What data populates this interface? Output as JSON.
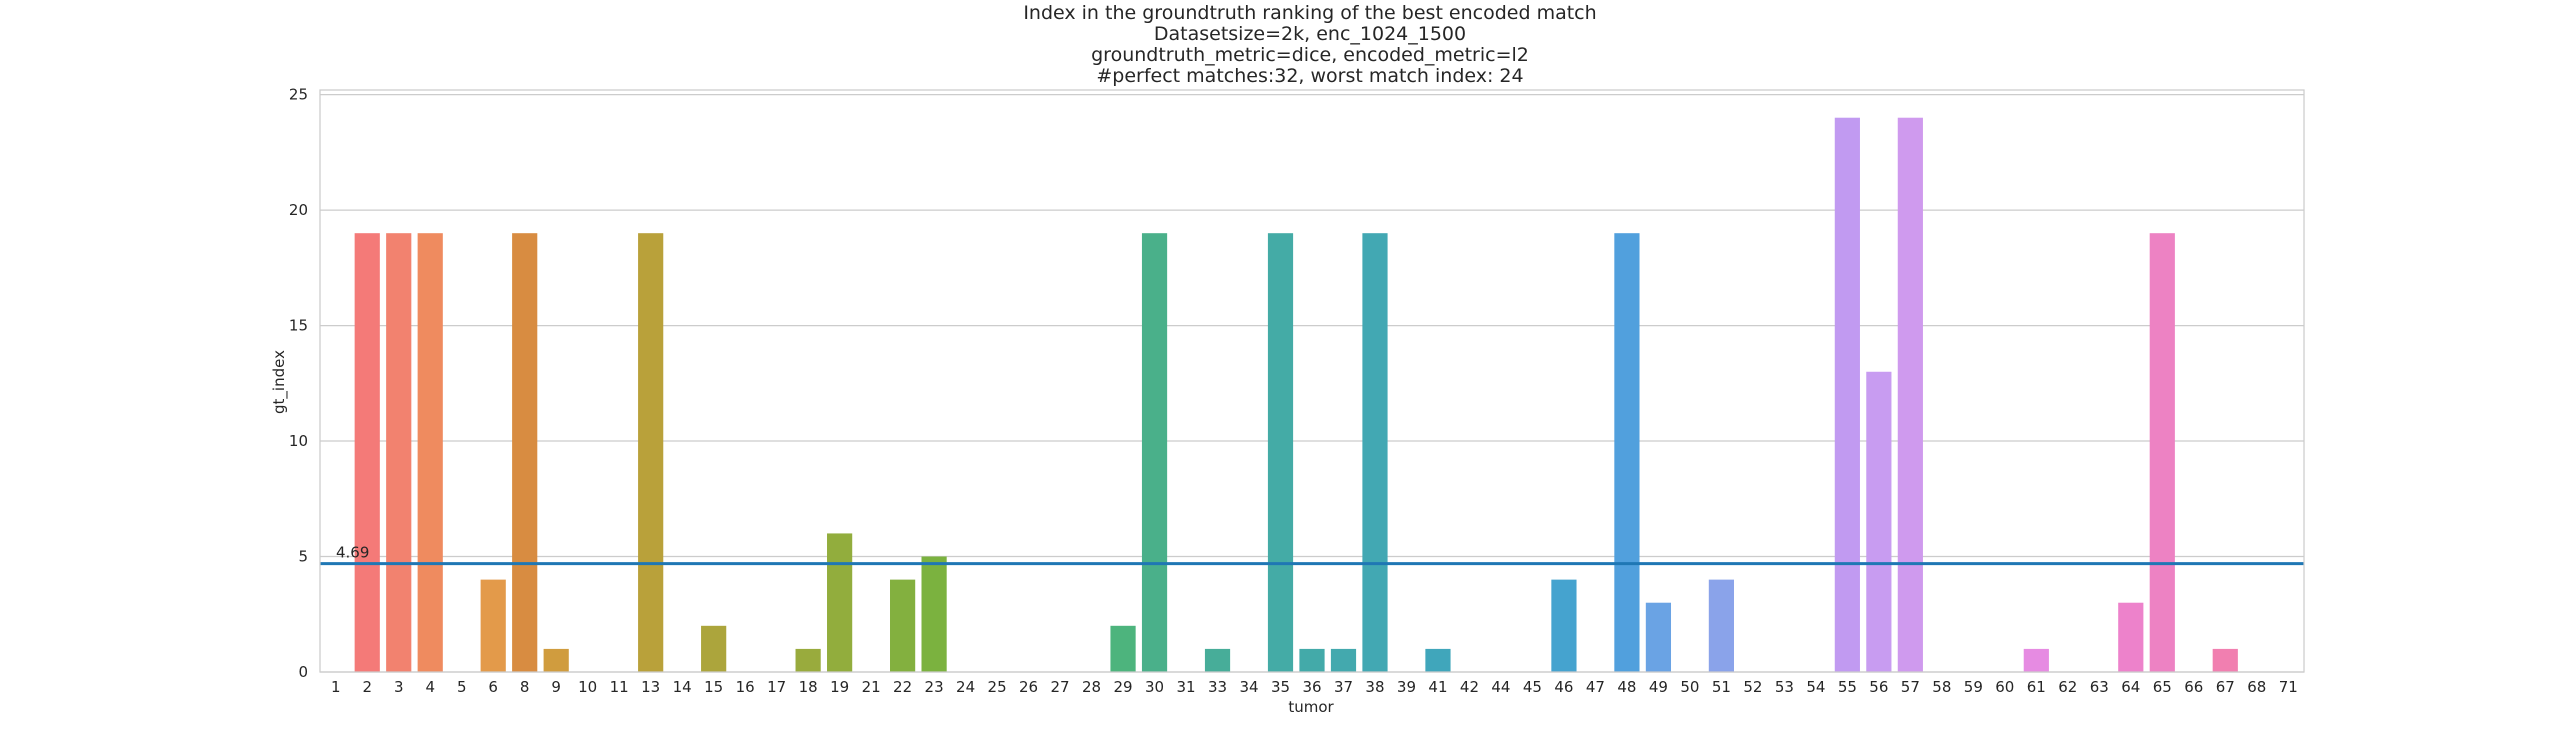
{
  "chart_data": {
    "type": "bar",
    "title_lines": [
      "Index in the groundtruth ranking of the best encoded match",
      "Datasetsize=2k, enc_1024_1500",
      "groundtruth_metric=dice, encoded_metric=l2",
      "#perfect matches:32, worst match index: 24"
    ],
    "xlabel": "tumor",
    "ylabel": "gt_index",
    "ylim": [
      0,
      25.2
    ],
    "yticks": [
      0,
      5,
      10,
      15,
      20,
      25
    ],
    "grid": "y",
    "categories": [
      "1",
      "2",
      "3",
      "4",
      "5",
      "6",
      "8",
      "9",
      "10",
      "11",
      "13",
      "14",
      "15",
      "16",
      "17",
      "18",
      "19",
      "21",
      "22",
      "23",
      "24",
      "25",
      "26",
      "27",
      "28",
      "29",
      "30",
      "31",
      "33",
      "34",
      "35",
      "36",
      "37",
      "38",
      "39",
      "41",
      "42",
      "44",
      "45",
      "46",
      "47",
      "48",
      "49",
      "50",
      "51",
      "52",
      "53",
      "54",
      "55",
      "56",
      "57",
      "58",
      "59",
      "60",
      "61",
      "62",
      "63",
      "64",
      "65",
      "66",
      "67",
      "68",
      "71"
    ],
    "values": [
      0,
      19,
      19,
      19,
      0,
      4,
      19,
      1,
      0,
      0,
      19,
      0,
      2,
      0,
      0,
      1,
      6,
      0,
      4,
      5,
      0,
      0,
      0,
      0,
      0,
      2,
      19,
      0,
      1,
      0,
      19,
      1,
      1,
      19,
      0,
      1,
      0,
      0,
      0,
      4,
      0,
      19,
      3,
      0,
      4,
      0,
      0,
      0,
      24,
      13,
      24,
      0,
      0,
      0,
      1,
      0,
      0,
      3,
      19,
      0,
      1,
      0,
      0
    ],
    "bar_colors": [
      "#f77189",
      "#f47a78",
      "#f2826f",
      "#ef8b5f",
      "#ec9350",
      "#e39a4a",
      "#d88c41",
      "#d09c3e",
      "#c8a23c",
      "#bfa43a",
      "#b9a13a",
      "#b2a43b",
      "#aca53c",
      "#a6a63d",
      "#a0a93d",
      "#99ab3d",
      "#92ad3d",
      "#8aaf3e",
      "#83b03f",
      "#7bb23f",
      "#6db43f",
      "#5fb541",
      "#50b649",
      "#4fb562",
      "#4eb46f",
      "#4db47d",
      "#4ab08a",
      "#48ae93",
      "#47ad99",
      "#46ac9f",
      "#44aba6",
      "#43aaa9",
      "#43a9ae",
      "#42a8b3",
      "#41a7b6",
      "#40a6bb",
      "#3fa6bf",
      "#3ea5c3",
      "#3da4ca",
      "#45a3cf",
      "#4ca1d4",
      "#51a0dd",
      "#6aa3e4",
      "#7ea5e8",
      "#8aa3ea",
      "#9aa1ee",
      "#a69ef0",
      "#b39bf0",
      "#c19af1",
      "#c89cf1",
      "#cf9aee",
      "#d396ec",
      "#da92e9",
      "#e08ee6",
      "#e68be2",
      "#ea86db",
      "#ec84d3",
      "#ed82cb",
      "#ed82c3",
      "#ef80ba",
      "#f17fb0",
      "#f47ea4",
      "#f47a98"
    ],
    "mean_line": {
      "value": 4.69,
      "label": "4.69",
      "color": "#1f77b4"
    },
    "colors": {
      "grid": "#cccccc",
      "frame": "#cccccc",
      "text": "#262626"
    }
  }
}
